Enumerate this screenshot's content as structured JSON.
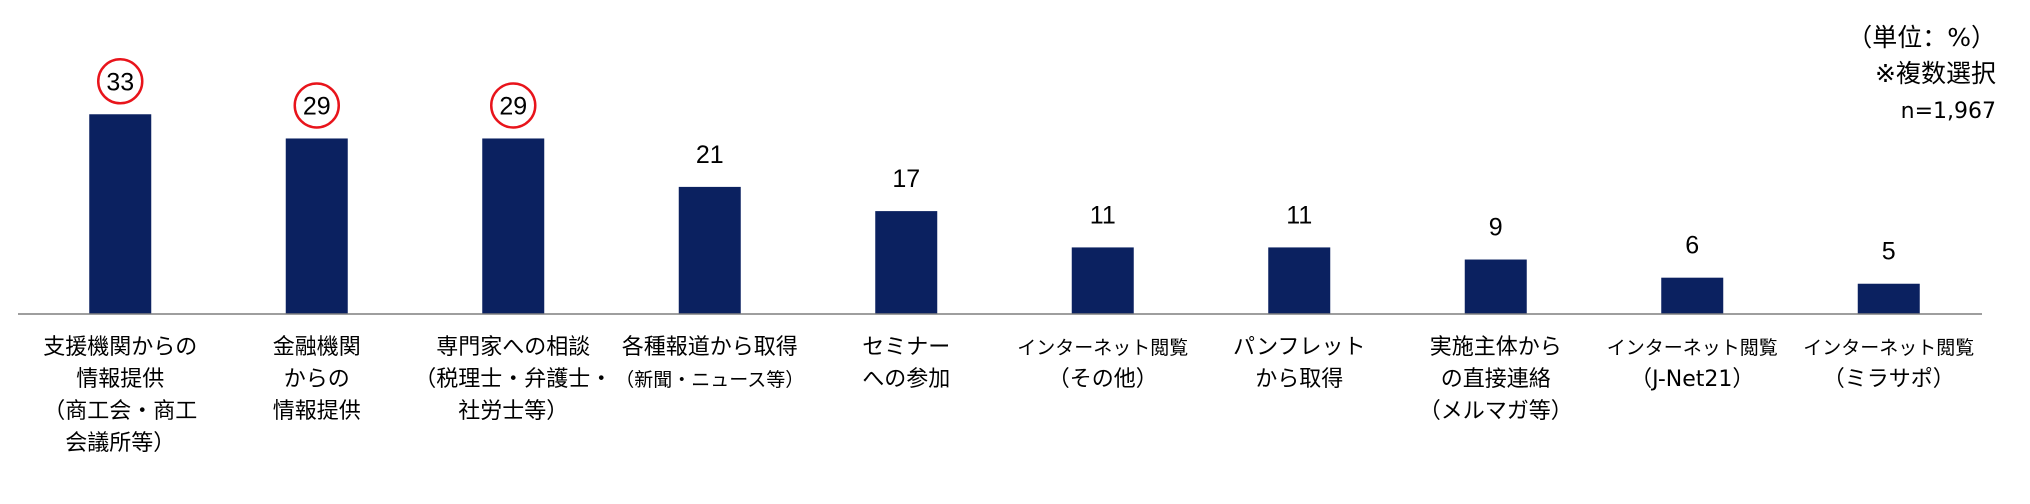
{
  "notes": {
    "unit": "（単位：%）",
    "multiple": "※複数選択",
    "n": "n=1,967"
  },
  "colors": {
    "bar": "#0b2160",
    "axis": "#7f7f7f",
    "highlight_circle": "#e8141b"
  },
  "chart_data": {
    "type": "bar",
    "categories": [
      [
        "支援機関からの",
        "情報提供",
        "（商工会・商工",
        "会議所等）"
      ],
      [
        "金融機関",
        "からの",
        "情報提供"
      ],
      [
        "専門家への相談",
        "（税理士・弁護士・",
        "社労士等）"
      ],
      [
        "各種報道から取得",
        "（新聞・ニュース等）"
      ],
      [
        "セミナー",
        "への参加"
      ],
      [
        "インターネット閲覧",
        "（その他）"
      ],
      [
        "パンフレット",
        "から取得"
      ],
      [
        "実施主体から",
        "の直接連絡",
        "（メルマガ等）"
      ],
      [
        "インターネット閲覧",
        "（J-Net21）"
      ],
      [
        "インターネット閲覧",
        "（ミラサポ）"
      ]
    ],
    "values": [
      33,
      29,
      29,
      21,
      17,
      11,
      11,
      9,
      6,
      5
    ],
    "highlighted": [
      true,
      true,
      true,
      false,
      false,
      false,
      false,
      false,
      false,
      false
    ],
    "ylim": [
      0,
      38
    ]
  }
}
